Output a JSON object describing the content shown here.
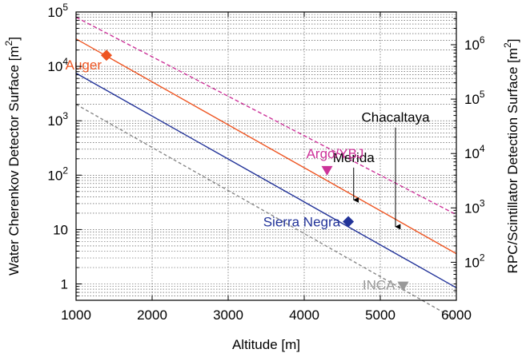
{
  "chart_data": {
    "type": "line",
    "xlabel": "Altitude [m]",
    "ylabel_left": "Water Cherenkov Detector Surface [m",
    "ylabel_right": "RPC/Scintillator Detection Surface [m",
    "ylabel_sup": "2",
    "xlim": [
      1000,
      6000
    ],
    "ylim_left": [
      0.5,
      100000
    ],
    "ylim_right": [
      20,
      4000000
    ],
    "y_scale": "log",
    "grid": true,
    "x_ticks": [
      "1000",
      "2000",
      "3000",
      "4000",
      "5000",
      "6000"
    ],
    "y_left_ticks": [
      {
        "value": 1,
        "base": "1",
        "exp": ""
      },
      {
        "value": 10,
        "base": "10",
        "exp": ""
      },
      {
        "value": 100,
        "base": "10",
        "exp": "2"
      },
      {
        "value": 1000,
        "base": "10",
        "exp": "3"
      },
      {
        "value": 10000,
        "base": "10",
        "exp": "4"
      },
      {
        "value": 100000,
        "base": "10",
        "exp": "5"
      }
    ],
    "y_right_ticks": [
      {
        "value": 100,
        "base": "10",
        "exp": "2"
      },
      {
        "value": 1000,
        "base": "10",
        "exp": "3"
      },
      {
        "value": 10000,
        "base": "10",
        "exp": "4"
      },
      {
        "value": 100000,
        "base": "10",
        "exp": "5"
      },
      {
        "value": 1000000,
        "base": "10",
        "exp": "6"
      }
    ],
    "series": [
      {
        "axis": "right",
        "color": "#cc3399",
        "dash": "5 3",
        "x": [
          1000,
          6000
        ],
        "y": [
          3200000,
          750
        ]
      },
      {
        "axis": "left",
        "color": "#ee5522",
        "dash": "",
        "x": [
          1000,
          6000
        ],
        "y": [
          32000,
          3.6
        ]
      },
      {
        "axis": "left",
        "color": "#223399",
        "dash": "",
        "x": [
          1000,
          6000
        ],
        "y": [
          7500,
          0.85
        ]
      },
      {
        "axis": "left",
        "color": "#888888",
        "dash": "4 3",
        "x": [
          1000,
          6000
        ],
        "y": [
          2000,
          0.22
        ]
      }
    ],
    "markers": [
      {
        "label": "Auger",
        "x": 1400,
        "y": 16000,
        "shape": "diamond",
        "color": "#ee5522"
      },
      {
        "label": "Sierra Negra",
        "x": 4580,
        "y": 14,
        "shape": "diamond",
        "color": "#223399"
      },
      {
        "label": "Argo/YBJ",
        "x": 4300,
        "y": 120,
        "shape": "triangle-down",
        "color": "#cc3399"
      },
      {
        "label": "INCA",
        "x": 5300,
        "y": 0.9,
        "shape": "triangle-down",
        "color": "#999999"
      }
    ],
    "annotations": [
      {
        "label": "Chacaltaya",
        "x": 5200,
        "color": "#000000",
        "arrow_from": 30000,
        "arrow_to": 450
      },
      {
        "label": "Merida",
        "x": 4650,
        "color": "#000000",
        "arrow_from": 5500,
        "arrow_to": 1400
      }
    ]
  }
}
